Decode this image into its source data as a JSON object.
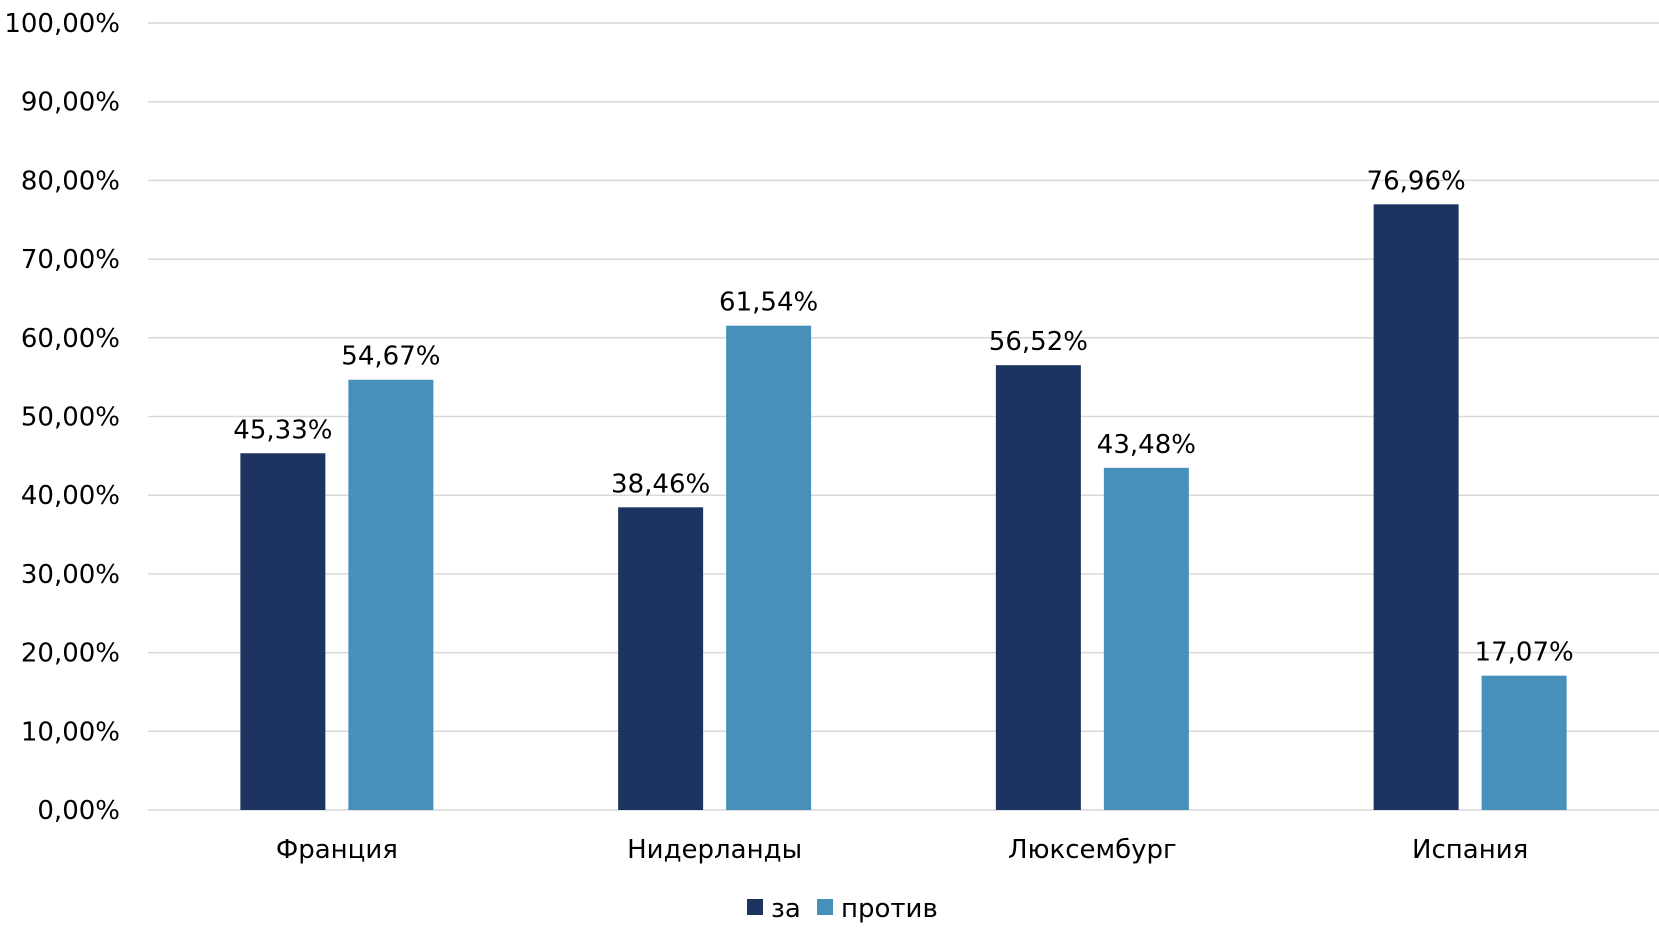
{
  "chart_data": {
    "type": "bar",
    "title": "",
    "xlabel": "",
    "ylabel": "",
    "categories": [
      "Франция",
      "Нидерланды",
      "Люксембург",
      "Испания"
    ],
    "series": [
      {
        "name": "за",
        "color": "#1d3461",
        "values": [
          45.33,
          38.46,
          56.52,
          76.96
        ],
        "labels": [
          "45,33%",
          "38,46%",
          "56,52%",
          "76,96%"
        ]
      },
      {
        "name": "против",
        "color": "#4790ba",
        "values": [
          54.67,
          61.54,
          43.48,
          17.07
        ],
        "labels": [
          "54,67%",
          "61,54%",
          "43,48%",
          "17,07%"
        ]
      }
    ],
    "ylim": [
      0,
      100
    ],
    "yticks": [
      0,
      10,
      20,
      30,
      40,
      50,
      60,
      70,
      80,
      90,
      100
    ],
    "ytick_labels": [
      "0,00%",
      "10,00%",
      "20,00%",
      "30,00%",
      "40,00%",
      "50,00%",
      "60,00%",
      "70,00%",
      "80,00%",
      "90,00%",
      "100,00%"
    ],
    "grid": true,
    "gridline_color": "#d9d9d9",
    "legend_position": "bottom"
  }
}
